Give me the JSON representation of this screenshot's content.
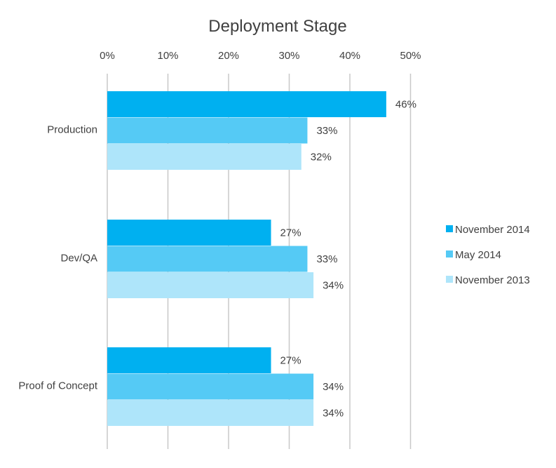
{
  "chart_data": {
    "type": "bar",
    "orientation": "horizontal",
    "title": "Deployment Stage",
    "xlabel": "",
    "ylabel": "",
    "xlim": [
      0,
      50
    ],
    "x_ticks": [
      "0%",
      "10%",
      "20%",
      "30%",
      "40%",
      "50%"
    ],
    "grid": true,
    "legend_position": "right",
    "categories": [
      "Production",
      "Dev/QA",
      "Proof of Concept"
    ],
    "series": [
      {
        "name": "November 2014",
        "color": "#00b0f0",
        "values": [
          46,
          27,
          27
        ],
        "labels": [
          "46%",
          "27%",
          "27%"
        ]
      },
      {
        "name": "May 2014",
        "color": "#55caf5",
        "values": [
          33,
          33,
          34
        ],
        "labels": [
          "33%",
          "33%",
          "34%"
        ]
      },
      {
        "name": "November 2013",
        "color": "#aee5fa",
        "values": [
          32,
          34,
          34
        ],
        "labels": [
          "32%",
          "34%",
          "34%"
        ]
      }
    ]
  }
}
